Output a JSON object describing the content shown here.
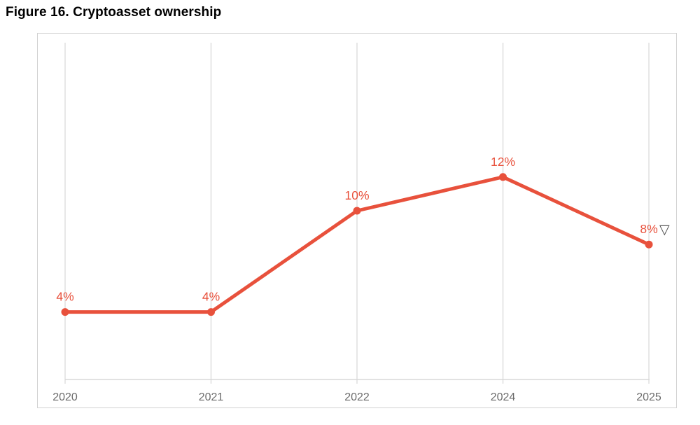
{
  "title": "Figure 16. Cryptoasset ownership",
  "colors": {
    "series": "#e8513c",
    "grid": "#e1e1e1",
    "axis_line": "#d8d8d8",
    "frame_border": "#d2d2d2",
    "tick_label": "#6b6b6b",
    "note_glyph": "#4a4a4a",
    "background": "#ffffff"
  },
  "chart_data": {
    "type": "line",
    "title": "Figure 16. Cryptoasset ownership",
    "categories": [
      "2020",
      "2021",
      "2022",
      "2024",
      "2025"
    ],
    "series": [
      {
        "name": "Cryptoasset ownership",
        "values": [
          4,
          4,
          10,
          12,
          8
        ],
        "labels": [
          "4%",
          "4%",
          "10%",
          "12%",
          "8%"
        ]
      }
    ],
    "annotations": [
      {
        "category": "2025",
        "glyph": "▽",
        "icon": "down-triangle-icon"
      }
    ],
    "xlabel": "",
    "ylabel": "",
    "ylim": [
      0,
      20.5
    ],
    "grid": "vertical-only",
    "legend": "none",
    "marker": "filled-circle",
    "baseline": "x-axis-at-0-percent"
  }
}
